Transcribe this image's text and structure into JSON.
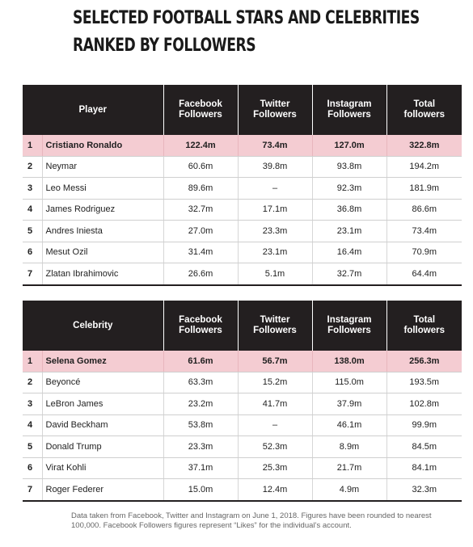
{
  "title": {
    "line1": "SELECTED FOOTBALL STARS AND CELEBRITIES",
    "line2": "RANKED BY FOLLOWERS"
  },
  "players": {
    "headers": {
      "entity": "Player",
      "facebook": [
        "Facebook",
        "Followers"
      ],
      "twitter": [
        "Twitter",
        "Followers"
      ],
      "instagram": [
        "Instagram",
        "Followers"
      ],
      "total": [
        "Total",
        "followers"
      ]
    },
    "rows": [
      {
        "rank": "1",
        "name": "Cristiano Ronaldo",
        "facebook": "122.4m",
        "twitter": "73.4m",
        "instagram": "127.0m",
        "total": "322.8m"
      },
      {
        "rank": "2",
        "name": "Neymar",
        "facebook": "60.6m",
        "twitter": "39.8m",
        "instagram": "93.8m",
        "total": "194.2m"
      },
      {
        "rank": "3",
        "name": "Leo Messi",
        "facebook": "89.6m",
        "twitter": "–",
        "instagram": "92.3m",
        "total": "181.9m"
      },
      {
        "rank": "4",
        "name": "James Rodriguez",
        "facebook": "32.7m",
        "twitter": "17.1m",
        "instagram": "36.8m",
        "total": "86.6m"
      },
      {
        "rank": "5",
        "name": "Andres Iniesta",
        "facebook": "27.0m",
        "twitter": "23.3m",
        "instagram": "23.1m",
        "total": "73.4m"
      },
      {
        "rank": "6",
        "name": "Mesut Ozil",
        "facebook": "31.4m",
        "twitter": "23.1m",
        "instagram": "16.4m",
        "total": "70.9m"
      },
      {
        "rank": "7",
        "name": "Zlatan Ibrahimovic",
        "facebook": "26.6m",
        "twitter": "5.1m",
        "instagram": "32.7m",
        "total": "64.4m"
      }
    ]
  },
  "celebrities": {
    "headers": {
      "entity": "Celebrity",
      "facebook": [
        "Facebook",
        "Followers"
      ],
      "twitter": [
        "Twitter",
        "Followers"
      ],
      "instagram": [
        "Instagram",
        "Followers"
      ],
      "total": [
        "Total",
        "followers"
      ]
    },
    "rows": [
      {
        "rank": "1",
        "name": "Selena Gomez",
        "facebook": "61.6m",
        "twitter": "56.7m",
        "instagram": "138.0m",
        "total": "256.3m"
      },
      {
        "rank": "2",
        "name": "Beyoncé",
        "facebook": "63.3m",
        "twitter": "15.2m",
        "instagram": "115.0m",
        "total": "193.5m"
      },
      {
        "rank": "3",
        "name": "LeBron James",
        "facebook": "23.2m",
        "twitter": "41.7m",
        "instagram": "37.9m",
        "total": "102.8m"
      },
      {
        "rank": "4",
        "name": "David Beckham",
        "facebook": "53.8m",
        "twitter": "–",
        "instagram": "46.1m",
        "total": "99.9m"
      },
      {
        "rank": "5",
        "name": "Donald Trump",
        "facebook": "23.3m",
        "twitter": "52.3m",
        "instagram": "8.9m",
        "total": "84.5m"
      },
      {
        "rank": "6",
        "name": "Virat Kohli",
        "facebook": "37.1m",
        "twitter": "25.3m",
        "instagram": "21.7m",
        "total": "84.1m"
      },
      {
        "rank": "7",
        "name": "Roger Federer",
        "facebook": "15.0m",
        "twitter": "12.4m",
        "instagram": "4.9m",
        "total": "32.3m"
      }
    ]
  },
  "footnote": "Data taken from Facebook, Twitter and Instagram on June 1, 2018. Figures have been rounded to nearest 100,000. Facebook Followers figures represent “Likes” for the individual’s account."
}
